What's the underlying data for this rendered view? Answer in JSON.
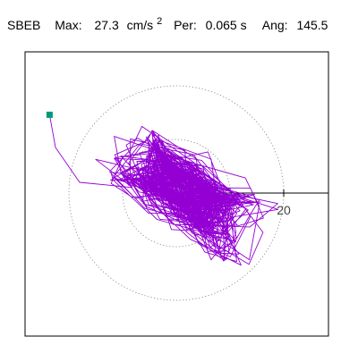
{
  "chart_data": {
    "type": "line",
    "title": {
      "station": "SBEB",
      "max_label": "Max:",
      "max_value": "27.3",
      "max_unit": "cm/s",
      "max_unit_exp": "2",
      "per_label": "Per:",
      "per_value": "0.065 s",
      "ang_label": "Ang:",
      "ang_value": "145.5"
    },
    "xlabel": "",
    "ylabel": "",
    "axis_range": {
      "x": [
        -27.3,
        27.3
      ],
      "y": [
        -27.3,
        27.3
      ]
    },
    "grid": "dotted-circles",
    "rings": [
      10,
      20
    ],
    "tick_labels": [
      "20"
    ],
    "start_marker": {
      "x": -23.6,
      "y": 14.6
    },
    "trace_seed": 145,
    "colors": {
      "trace": "#9400d3",
      "marker": "#009a7a",
      "rings": "#808080",
      "axis": "#000000",
      "frame": "#000000"
    }
  }
}
